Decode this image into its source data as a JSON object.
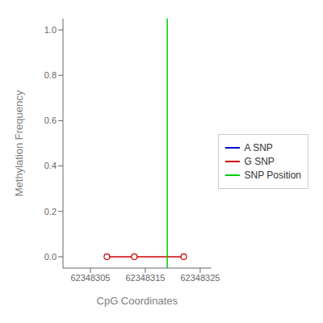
{
  "chart_data": {
    "type": "line",
    "xlabel": "CpG Coordinates",
    "ylabel": "Methylation Frequency",
    "xlim": [
      62348300,
      62348327
    ],
    "ylim": [
      -0.05,
      1.05
    ],
    "xticks": [
      62348305,
      62348315,
      62348325
    ],
    "yticks": [
      {
        "value": 0.0,
        "label": "0.0"
      },
      0.2,
      0.4,
      0.6,
      0.8,
      {
        "value": 1.0,
        "label": "1.0"
      }
    ],
    "grid": false,
    "legend": "right",
    "series": [
      {
        "name": "A SNP",
        "color": "#0000CC",
        "x": [],
        "values": []
      },
      {
        "name": "G SNP",
        "color": "#CC0000",
        "marker": "circle",
        "x": [
          62348308,
          62348313,
          62348322
        ],
        "values": [
          0.0,
          0.0,
          0.0
        ]
      },
      {
        "name": "SNP Position",
        "type": "vline",
        "color": "#00CC00",
        "x": [
          62348319
        ]
      }
    ]
  }
}
